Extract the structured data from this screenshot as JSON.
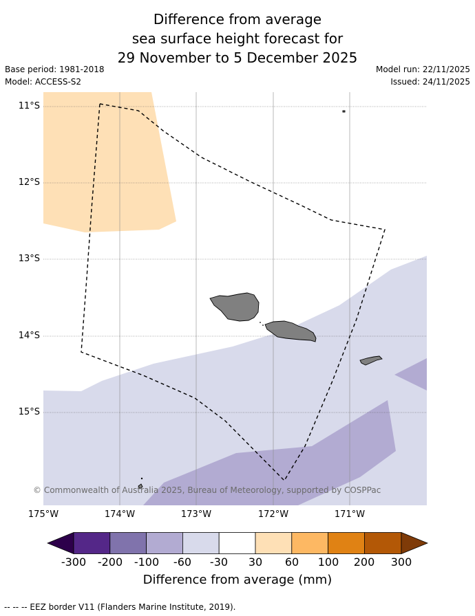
{
  "title": {
    "line1": "Difference from average",
    "line2": "sea surface height forecast for",
    "line3": "29 November to 5 December 2025"
  },
  "meta": {
    "base_period": "Base period: 1981-2018",
    "model": "Model: ACCESS-S2",
    "model_run": "Model run: 22/11/2025",
    "issued": "Issued: 24/11/2025"
  },
  "map": {
    "lat_labels": [
      "11°S",
      "12°S",
      "13°S",
      "14°S",
      "15°S"
    ],
    "lon_labels": [
      "175°W",
      "174°W",
      "173°W",
      "172°W",
      "171°W"
    ],
    "copyright": "© Commonwealth of Australia 2025, Bureau of Meteorology, supported by COSPPac",
    "colors": {
      "pos_30_60": "#fee0b6",
      "neg_30_60": "#d8daeb",
      "neg_60_100": "#b2abd2",
      "land": "#808080"
    }
  },
  "colorbar": {
    "ticks": [
      "-300",
      "-200",
      "-100",
      "-60",
      "-30",
      "30",
      "60",
      "100",
      "200",
      "300"
    ],
    "colors": [
      "#2d004b",
      "#542788",
      "#8073ac",
      "#b2abd2",
      "#d8daeb",
      "#ffffff",
      "#fee0b6",
      "#fdb863",
      "#e08214",
      "#b35806",
      "#7f3b08"
    ],
    "label": "Difference from average (mm)"
  },
  "footer": "--  --  -- EEZ border V11 (Flanders Marine Institute, 2019)."
}
